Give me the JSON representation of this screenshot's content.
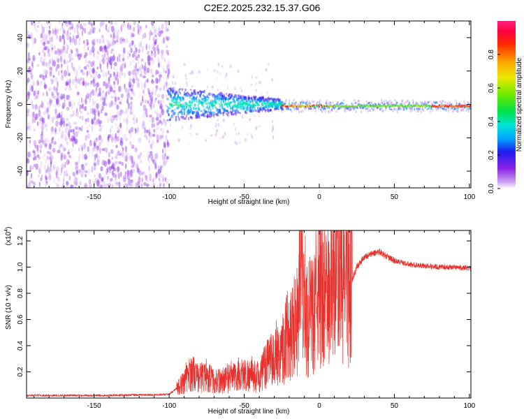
{
  "title": "C2E2.2025.232.15.37.G06",
  "chart_data": [
    {
      "type": "heatmap",
      "name": "spectrogram",
      "xlabel": "Height of straight line (km)",
      "ylabel": "Frequency (Hz)",
      "xlim": [
        -195,
        101
      ],
      "ylim": [
        -50,
        50
      ],
      "xticks": [
        -150,
        -100,
        -50,
        0,
        50,
        100
      ],
      "yticks": [
        -40,
        -20,
        0,
        20,
        40
      ],
      "colorbar": {
        "label": "Normalized spectral amplitude",
        "range": [
          0,
          1
        ],
        "ticks": [
          0.0,
          0.2,
          0.4,
          0.6,
          0.8
        ],
        "tick_labels": [
          "0.0",
          "0.2",
          "0.4",
          "0.6",
          "0.8"
        ]
      },
      "regions": [
        {
          "description": "scattered noise",
          "x_range": [
            -195,
            -100
          ],
          "freq_range": [
            -50,
            50
          ],
          "amplitude_range": [
            0.02,
            0.15
          ]
        },
        {
          "description": "widening signal band",
          "x_range": [
            -100,
            -25
          ],
          "freq_halfwidth": [
            10,
            3
          ],
          "amplitude_range": [
            0.2,
            0.45
          ]
        },
        {
          "description": "coherent tone",
          "x_range": [
            -25,
            100
          ],
          "freq_center": -1,
          "amplitude_range": [
            0.5,
            1.0
          ]
        }
      ]
    },
    {
      "type": "line",
      "name": "snr",
      "xlabel": "Height of straight line (km)",
      "ylabel": "SNR (10 * v/v)",
      "multiplier_label": "(x10",
      "multiplier_exp": "4",
      "multiplier_close": ")",
      "xlim": [
        -195,
        101
      ],
      "ylim": [
        0,
        1.28
      ],
      "xticks": [
        -150,
        -100,
        -50,
        0,
        50,
        100
      ],
      "yticks": [
        0.2,
        0.4,
        0.6,
        0.8,
        1.0,
        1.2
      ],
      "ytick_labels": [
        "0.2",
        "0.4",
        "0.6",
        "0.8",
        "1.0",
        "1.2"
      ],
      "color": "#e8302c",
      "series": [
        {
          "name": "SNR",
          "x": [
            -195,
            -150,
            -110,
            -100,
            -92,
            -85,
            -80,
            -75,
            -70,
            -60,
            -50,
            -40,
            -35,
            -30,
            -25,
            -20,
            -15,
            -12,
            -10,
            -8,
            -5,
            0,
            5,
            10,
            15,
            20,
            25,
            30,
            35,
            40,
            45,
            50,
            60,
            70,
            80,
            90,
            100
          ],
          "y": [
            0.02,
            0.02,
            0.025,
            0.03,
            0.1,
            0.2,
            0.15,
            0.18,
            0.12,
            0.15,
            0.18,
            0.16,
            0.25,
            0.3,
            0.38,
            0.5,
            0.6,
            0.9,
            0.8,
            0.6,
            0.6,
            0.85,
            0.75,
            0.9,
            0.9,
            0.85,
            1.0,
            1.08,
            1.1,
            1.12,
            1.08,
            1.05,
            1.02,
            1.01,
            1.0,
            1.0,
            0.99
          ]
        }
      ]
    }
  ]
}
